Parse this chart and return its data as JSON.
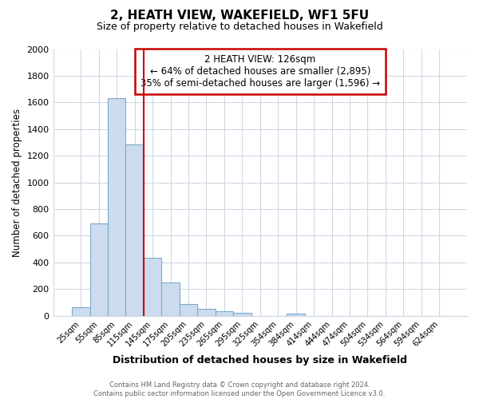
{
  "title": "2, HEATH VIEW, WAKEFIELD, WF1 5FU",
  "subtitle": "Size of property relative to detached houses in Wakefield",
  "xlabel": "Distribution of detached houses by size in Wakefield",
  "ylabel": "Number of detached properties",
  "bar_labels": [
    "25sqm",
    "55sqm",
    "85sqm",
    "115sqm",
    "145sqm",
    "175sqm",
    "205sqm",
    "235sqm",
    "265sqm",
    "295sqm",
    "325sqm",
    "354sqm",
    "384sqm",
    "414sqm",
    "444sqm",
    "474sqm",
    "504sqm",
    "534sqm",
    "564sqm",
    "594sqm",
    "624sqm"
  ],
  "bar_values": [
    65,
    695,
    1630,
    1285,
    435,
    250,
    90,
    50,
    35,
    22,
    0,
    0,
    15,
    0,
    0,
    0,
    0,
    0,
    0,
    0,
    0
  ],
  "bar_color": "#ccdcee",
  "bar_edge_color": "#7aaaca",
  "ylim": [
    0,
    2000
  ],
  "yticks": [
    0,
    200,
    400,
    600,
    800,
    1000,
    1200,
    1400,
    1600,
    1800,
    2000
  ],
  "red_line_index": 3,
  "annotation_title": "2 HEATH VIEW: 126sqm",
  "annotation_line1": "← 64% of detached houses are smaller (2,895)",
  "annotation_line2": "35% of semi-detached houses are larger (1,596) →",
  "annotation_box_color": "#ffffff",
  "annotation_box_edge": "#cc0000",
  "red_line_color": "#cc0000",
  "footer_line1": "Contains HM Land Registry data © Crown copyright and database right 2024.",
  "footer_line2": "Contains public sector information licensed under the Open Government Licence v3.0.",
  "background_color": "#ffffff",
  "grid_color": "#d0d8e4"
}
